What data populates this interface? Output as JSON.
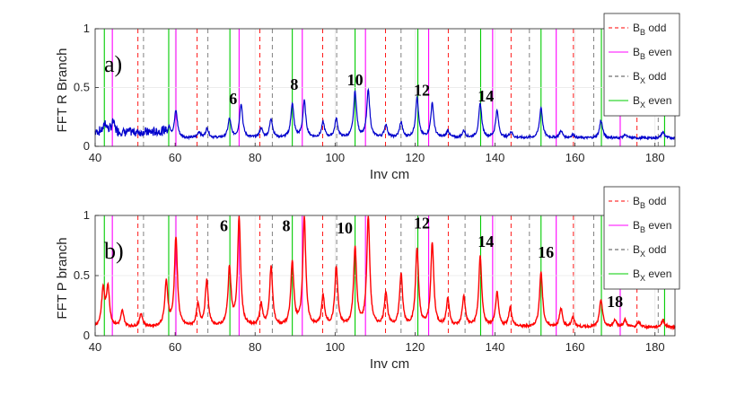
{
  "chart_data": [
    {
      "type": "line",
      "panel_label": "a)",
      "xlabel": "Inv cm",
      "ylabel": "FFT R Branch",
      "xlim": [
        40,
        185
      ],
      "ylim": [
        0,
        1
      ],
      "xticks": [
        "40",
        "60",
        "80",
        "100",
        "120",
        "140",
        "160",
        "180"
      ],
      "yticks": [
        "0",
        "0.5",
        "1"
      ],
      "line_color": "#0000cc",
      "baseline": 0.07,
      "noise_region": [
        40,
        58
      ],
      "peaks": [
        {
          "x": 42.5,
          "y": 0.15
        },
        {
          "x": 44.5,
          "y": 0.16
        },
        {
          "x": 58.5,
          "y": 0.16
        },
        {
          "x": 60.2,
          "y": 0.3
        },
        {
          "x": 66.0,
          "y": 0.12
        },
        {
          "x": 68.0,
          "y": 0.15
        },
        {
          "x": 73.6,
          "y": 0.23
        },
        {
          "x": 76.5,
          "y": 0.36
        },
        {
          "x": 81.5,
          "y": 0.15
        },
        {
          "x": 84.0,
          "y": 0.23
        },
        {
          "x": 89.3,
          "y": 0.36
        },
        {
          "x": 92.3,
          "y": 0.38
        },
        {
          "x": 97.0,
          "y": 0.2
        },
        {
          "x": 100.3,
          "y": 0.23
        },
        {
          "x": 105.0,
          "y": 0.46
        },
        {
          "x": 108.3,
          "y": 0.47
        },
        {
          "x": 112.7,
          "y": 0.18
        },
        {
          "x": 116.5,
          "y": 0.2
        },
        {
          "x": 120.5,
          "y": 0.41
        },
        {
          "x": 124.3,
          "y": 0.36
        },
        {
          "x": 128.2,
          "y": 0.13
        },
        {
          "x": 132.2,
          "y": 0.13
        },
        {
          "x": 136.3,
          "y": 0.36
        },
        {
          "x": 140.5,
          "y": 0.3
        },
        {
          "x": 144.0,
          "y": 0.12
        },
        {
          "x": 151.5,
          "y": 0.33
        },
        {
          "x": 156.5,
          "y": 0.13
        },
        {
          "x": 159.5,
          "y": 0.1
        },
        {
          "x": 166.5,
          "y": 0.22
        },
        {
          "x": 172.5,
          "y": 0.1
        },
        {
          "x": 182.0,
          "y": 0.12
        }
      ],
      "annotations": [
        {
          "text": "6",
          "x": 74.5,
          "y": 0.36
        },
        {
          "text": "8",
          "x": 89.8,
          "y": 0.48
        },
        {
          "text": "10",
          "x": 105.0,
          "y": 0.52
        },
        {
          "text": "12",
          "x": 121.7,
          "y": 0.43
        },
        {
          "text": "14",
          "x": 137.7,
          "y": 0.38
        }
      ],
      "legend": {
        "placement": "right",
        "entries": [
          {
            "base": "B",
            "sub": "B",
            "suffix": " odd",
            "color": "#ff0000",
            "style": "dashed"
          },
          {
            "base": "B",
            "sub": "B",
            "suffix": " even",
            "color": "#ff00ff",
            "style": "solid"
          },
          {
            "base": "B",
            "sub": "X",
            "suffix": " odd",
            "color": "#000000",
            "style": "dashed"
          },
          {
            "base": "B",
            "sub": "X",
            "suffix": " even",
            "color": "#00cc00",
            "style": "solid"
          }
        ]
      }
    },
    {
      "type": "line",
      "panel_label": "b)",
      "xlabel": "Inv cm",
      "ylabel": "FFT P branch",
      "xlim": [
        40,
        185
      ],
      "ylim": [
        0,
        1
      ],
      "xticks": [
        "40",
        "60",
        "80",
        "100",
        "120",
        "140",
        "160",
        "180"
      ],
      "yticks": [
        "0",
        "0.5",
        "1"
      ],
      "line_color": "#ff0000",
      "baseline": 0.07,
      "noise_region": [],
      "peaks": [
        {
          "x": 42.0,
          "y": 0.38
        },
        {
          "x": 43.2,
          "y": 0.4
        },
        {
          "x": 46.8,
          "y": 0.2
        },
        {
          "x": 51.5,
          "y": 0.18
        },
        {
          "x": 57.8,
          "y": 0.44
        },
        {
          "x": 60.2,
          "y": 0.81
        },
        {
          "x": 65.7,
          "y": 0.25
        },
        {
          "x": 67.9,
          "y": 0.45
        },
        {
          "x": 73.6,
          "y": 0.55
        },
        {
          "x": 76.0,
          "y": 0.97
        },
        {
          "x": 81.5,
          "y": 0.25
        },
        {
          "x": 84.0,
          "y": 0.56
        },
        {
          "x": 89.3,
          "y": 0.6
        },
        {
          "x": 92.3,
          "y": 0.98
        },
        {
          "x": 97.0,
          "y": 0.32
        },
        {
          "x": 100.3,
          "y": 0.56
        },
        {
          "x": 105.0,
          "y": 0.72
        },
        {
          "x": 108.3,
          "y": 0.98
        },
        {
          "x": 112.7,
          "y": 0.35
        },
        {
          "x": 116.5,
          "y": 0.5
        },
        {
          "x": 120.5,
          "y": 0.72
        },
        {
          "x": 124.3,
          "y": 0.76
        },
        {
          "x": 128.2,
          "y": 0.3
        },
        {
          "x": 132.2,
          "y": 0.32
        },
        {
          "x": 136.3,
          "y": 0.65
        },
        {
          "x": 140.5,
          "y": 0.35
        },
        {
          "x": 143.8,
          "y": 0.23
        },
        {
          "x": 151.5,
          "y": 0.53
        },
        {
          "x": 156.5,
          "y": 0.22
        },
        {
          "x": 159.5,
          "y": 0.15
        },
        {
          "x": 166.5,
          "y": 0.3
        },
        {
          "x": 170.0,
          "y": 0.13
        },
        {
          "x": 172.5,
          "y": 0.13
        },
        {
          "x": 176.0,
          "y": 0.11
        },
        {
          "x": 182.0,
          "y": 0.13
        }
      ],
      "annotations": [
        {
          "text": "6",
          "x": 72.2,
          "y": 0.87
        },
        {
          "text": "8",
          "x": 87.8,
          "y": 0.87
        },
        {
          "text": "10",
          "x": 102.4,
          "y": 0.85
        },
        {
          "text": "12",
          "x": 121.7,
          "y": 0.89
        },
        {
          "text": "14",
          "x": 137.7,
          "y": 0.74
        },
        {
          "text": "16",
          "x": 152.7,
          "y": 0.65
        },
        {
          "text": "18",
          "x": 170.0,
          "y": 0.24
        }
      ],
      "legend": {
        "placement": "right",
        "entries": [
          {
            "base": "B",
            "sub": "B",
            "suffix": " odd",
            "color": "#ff0000",
            "style": "dashed"
          },
          {
            "base": "B",
            "sub": "B",
            "suffix": " even",
            "color": "#ff00ff",
            "style": "solid"
          },
          {
            "base": "B",
            "sub": "X",
            "suffix": " odd",
            "color": "#000000",
            "style": "dashed"
          },
          {
            "base": "B",
            "sub": "X",
            "suffix": " even",
            "color": "#00cc00",
            "style": "solid"
          }
        ]
      }
    }
  ],
  "reference_lines": {
    "bb_odd": [
      50.7,
      65.5,
      81.2,
      96.9,
      112.6,
      128.3,
      144.0,
      159.6,
      175.5
    ],
    "bb_even": [
      44.3,
      60.2,
      76.0,
      91.8,
      107.6,
      123.4,
      139.4,
      155.3,
      171.3
    ],
    "bx_odd": [
      52.1,
      68.2,
      84.3,
      100.4,
      116.5,
      132.5,
      148.6,
      164.7,
      180.8
    ],
    "bx_even": [
      42.3,
      58.4,
      73.7,
      89.3,
      105.0,
      120.7,
      136.4,
      151.5,
      166.6,
      182.4
    ]
  }
}
